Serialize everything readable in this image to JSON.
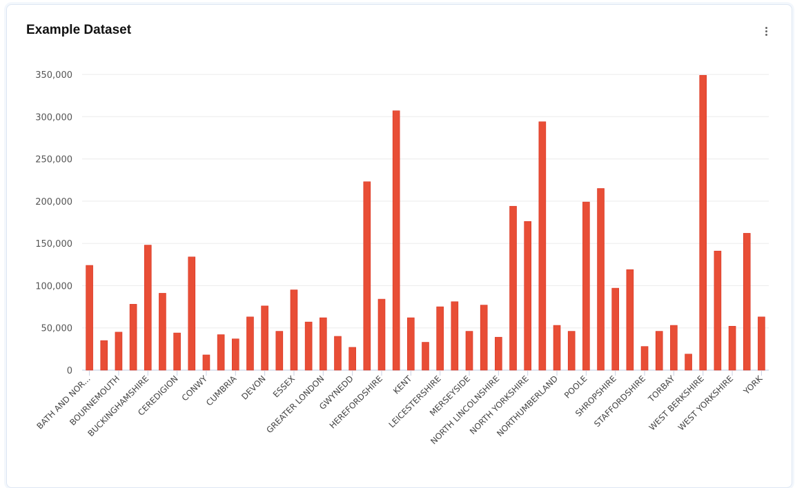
{
  "header": {
    "title": "Example Dataset",
    "menu_icon": "more-vertical-icon"
  },
  "chart_data": {
    "type": "bar",
    "title": "",
    "xlabel": "",
    "ylabel": "",
    "ylim": [
      0,
      350000
    ],
    "yticks": [
      "0",
      "50,000",
      "100,000",
      "150,000",
      "200,000",
      "250,000",
      "300,000",
      "350,000"
    ],
    "grid": true,
    "bar_color": "#e84e36",
    "categories": [
      "BATH AND NOR...",
      "",
      "BOURNEMOUTH",
      "",
      "BUCKINGHAMSHIRE",
      "",
      "CEREDIGION",
      "",
      "CONWY",
      "",
      "CUMBRIA",
      "",
      "DEVON",
      "",
      "ESSEX",
      "",
      "GREATER LONDON",
      "",
      "GWYNEDD",
      "",
      "HEREFORDSHIRE",
      "",
      "KENT",
      "",
      "LEICESTERSHIRE",
      "",
      "MERSEYSIDE",
      "",
      "NORTH LINCOLNSHIRE",
      "",
      "NORTH YORKSHIRE",
      "",
      "NORTHUMBERLAND",
      "",
      "POOLE",
      "",
      "SHROPSHIRE",
      "",
      "STAFFORDSHIRE",
      "",
      "TORBAY",
      "",
      "WEST BERKSHIRE",
      "",
      "WEST YORKSHIRE",
      "",
      "YORK"
    ],
    "values": [
      124000,
      35000,
      45000,
      78000,
      148000,
      91000,
      44000,
      134000,
      18000,
      42000,
      37000,
      63000,
      76000,
      46000,
      95000,
      57000,
      62000,
      40000,
      27000,
      223000,
      84000,
      307000,
      62000,
      33000,
      75000,
      81000,
      46000,
      77000,
      39000,
      194000,
      176000,
      294000,
      53000,
      46000,
      199000,
      215000,
      97000,
      119000,
      28000,
      46000,
      53000,
      19000,
      349000,
      141000,
      52000,
      162000,
      63000
    ]
  }
}
